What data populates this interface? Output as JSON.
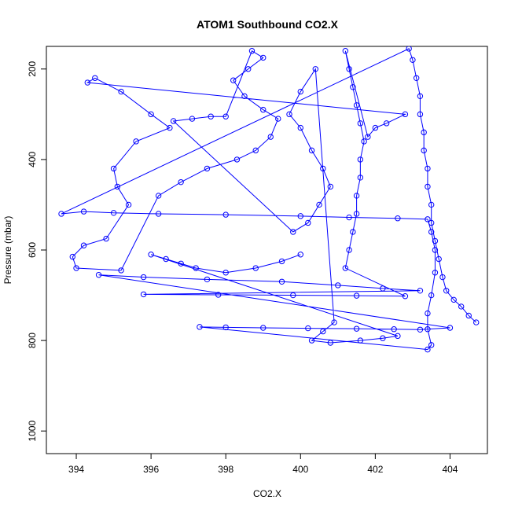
{
  "chart_data": {
    "type": "scatter",
    "title": "ATOM1 Southbound CO2.X",
    "xlabel": "CO2.X",
    "ylabel": "Pressure (mbar)",
    "xlim": [
      393.2,
      405.0
    ],
    "ylim": [
      1050,
      150
    ],
    "y_reversed": true,
    "x_ticks": [
      "394",
      "396",
      "398",
      "400",
      "402",
      "404"
    ],
    "y_ticks": [
      "200",
      "400",
      "600",
      "800",
      "1000"
    ],
    "grid": false,
    "legend": "none",
    "marker": "open-circle",
    "line_connects_points": true,
    "series": [
      {
        "color": "#0000ff",
        "points": [
          [
            404.7,
            760
          ],
          [
            404.5,
            745
          ],
          [
            404.3,
            725
          ],
          [
            404.1,
            710
          ],
          [
            403.9,
            690
          ],
          [
            403.8,
            660
          ],
          [
            403.7,
            620
          ],
          [
            403.6,
            580
          ],
          [
            403.5,
            540
          ],
          [
            403.5,
            500
          ],
          [
            403.4,
            460
          ],
          [
            403.4,
            420
          ],
          [
            403.3,
            380
          ],
          [
            403.3,
            340
          ],
          [
            403.2,
            300
          ],
          [
            403.2,
            260
          ],
          [
            403.1,
            220
          ],
          [
            403.0,
            180
          ],
          [
            402.9,
            155
          ],
          [
            393.6,
            520
          ],
          [
            394.2,
            515
          ],
          [
            395.0,
            518
          ],
          [
            396.2,
            520
          ],
          [
            398.0,
            522
          ],
          [
            400.0,
            525
          ],
          [
            401.3,
            528
          ],
          [
            402.6,
            530
          ],
          [
            403.4,
            532
          ],
          [
            403.5,
            560
          ],
          [
            403.6,
            600
          ],
          [
            403.6,
            650
          ],
          [
            403.5,
            700
          ],
          [
            403.4,
            740
          ],
          [
            403.4,
            775
          ],
          [
            403.5,
            810
          ],
          [
            403.4,
            820
          ],
          [
            397.3,
            770
          ],
          [
            398.0,
            771
          ],
          [
            399.0,
            772
          ],
          [
            400.2,
            773
          ],
          [
            401.5,
            774
          ],
          [
            402.5,
            775
          ],
          [
            403.2,
            776
          ],
          [
            404.0,
            772
          ],
          [
            394.6,
            655
          ],
          [
            395.8,
            660
          ],
          [
            397.5,
            665
          ],
          [
            399.5,
            670
          ],
          [
            401.0,
            678
          ],
          [
            402.2,
            685
          ],
          [
            403.2,
            690
          ],
          [
            395.8,
            698
          ],
          [
            397.8,
            699
          ],
          [
            399.8,
            700
          ],
          [
            401.5,
            701
          ],
          [
            402.8,
            702
          ],
          [
            401.2,
            640
          ],
          [
            401.3,
            600
          ],
          [
            401.4,
            560
          ],
          [
            401.5,
            520
          ],
          [
            401.5,
            480
          ],
          [
            401.6,
            440
          ],
          [
            401.6,
            400
          ],
          [
            401.7,
            360
          ],
          [
            401.6,
            320
          ],
          [
            401.5,
            280
          ],
          [
            401.4,
            240
          ],
          [
            401.3,
            200
          ],
          [
            401.2,
            160
          ],
          [
            401.8,
            350
          ],
          [
            402.0,
            330
          ],
          [
            402.3,
            320
          ],
          [
            402.8,
            300
          ],
          [
            394.3,
            230
          ],
          [
            394.5,
            220
          ],
          [
            395.2,
            250
          ],
          [
            396.0,
            300
          ],
          [
            396.5,
            330
          ],
          [
            395.6,
            360
          ],
          [
            395.0,
            420
          ],
          [
            395.1,
            460
          ],
          [
            395.4,
            500
          ],
          [
            394.8,
            575
          ],
          [
            394.2,
            590
          ],
          [
            393.9,
            615
          ],
          [
            394.0,
            640
          ],
          [
            395.2,
            645
          ],
          [
            396.2,
            480
          ],
          [
            396.8,
            450
          ],
          [
            397.5,
            420
          ],
          [
            398.3,
            400
          ],
          [
            398.8,
            380
          ],
          [
            399.2,
            350
          ],
          [
            399.4,
            310
          ],
          [
            399.0,
            290
          ],
          [
            398.5,
            260
          ],
          [
            398.2,
            225
          ],
          [
            398.6,
            200
          ],
          [
            399.0,
            175
          ],
          [
            398.7,
            160
          ],
          [
            398.0,
            305
          ],
          [
            397.6,
            305
          ],
          [
            397.1,
            310
          ],
          [
            396.6,
            315
          ],
          [
            399.8,
            560
          ],
          [
            400.2,
            540
          ],
          [
            400.5,
            500
          ],
          [
            400.8,
            460
          ],
          [
            400.6,
            420
          ],
          [
            400.3,
            380
          ],
          [
            400.0,
            330
          ],
          [
            399.7,
            300
          ],
          [
            400.0,
            250
          ],
          [
            400.4,
            200
          ],
          [
            400.9,
            760
          ],
          [
            400.6,
            780
          ],
          [
            400.3,
            800
          ],
          [
            400.8,
            805
          ],
          [
            401.6,
            800
          ],
          [
            402.2,
            795
          ],
          [
            402.6,
            790
          ],
          [
            396.0,
            610
          ],
          [
            396.4,
            620
          ],
          [
            396.8,
            630
          ],
          [
            397.2,
            640
          ],
          [
            398.0,
            650
          ],
          [
            398.8,
            640
          ],
          [
            399.5,
            625
          ],
          [
            400.0,
            610
          ]
        ]
      }
    ]
  }
}
